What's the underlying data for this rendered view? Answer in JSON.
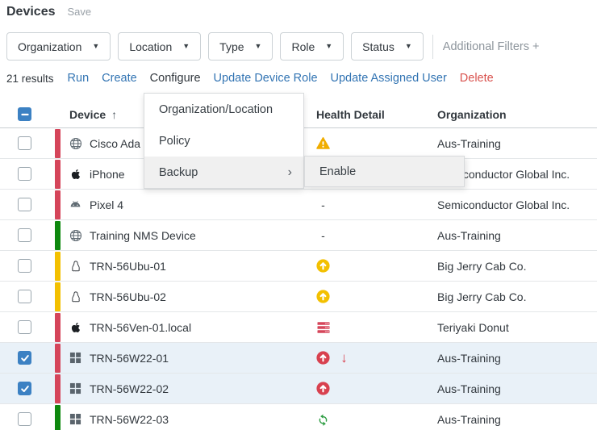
{
  "header": {
    "title": "Devices",
    "save_label": "Save"
  },
  "filters": {
    "dropdowns": [
      "Organization",
      "Location",
      "Type",
      "Role",
      "Status"
    ],
    "additional_label": "Additional Filters +"
  },
  "toolbar": {
    "results_count": "21 results",
    "actions": [
      {
        "label": "Run",
        "style": "link"
      },
      {
        "label": "Create",
        "style": "link"
      },
      {
        "label": "Configure",
        "style": "active"
      },
      {
        "label": "Update Device Role",
        "style": "link"
      },
      {
        "label": "Update Assigned User",
        "style": "link"
      },
      {
        "label": "Delete",
        "style": "danger"
      }
    ]
  },
  "table": {
    "headers": {
      "device": "Device",
      "sort_indicator": "↑",
      "health": "Health Detail",
      "organization": "Organization"
    },
    "select_all_state": "indeterminate",
    "rows": [
      {
        "device": "Cisco Ada",
        "device_icon": "globe",
        "status_color": "red",
        "health": [
          "warning-triangle"
        ],
        "organization": "Aus-Training",
        "selected": false
      },
      {
        "device": "iPhone",
        "device_icon": "apple",
        "status_color": "red",
        "health": [],
        "organization": "Semiconductor Global Inc.",
        "selected": false
      },
      {
        "device": "Pixel 4",
        "device_icon": "android",
        "status_color": "red",
        "health": [
          "dash"
        ],
        "organization": "Semiconductor Global Inc.",
        "selected": false
      },
      {
        "device": "Training NMS Device",
        "device_icon": "globe",
        "status_color": "green",
        "health": [
          "dash"
        ],
        "organization": "Aus-Training",
        "selected": false
      },
      {
        "device": "TRN-56Ubu-01",
        "device_icon": "linux",
        "status_color": "yellow",
        "health": [
          "up-arrow-yellow"
        ],
        "organization": "Big Jerry Cab Co.",
        "selected": false
      },
      {
        "device": "TRN-56Ubu-02",
        "device_icon": "linux",
        "status_color": "yellow",
        "health": [
          "up-arrow-yellow"
        ],
        "organization": "Big Jerry Cab Co.",
        "selected": false
      },
      {
        "device": "TRN-56Ven-01.local",
        "device_icon": "apple",
        "status_color": "red",
        "health": [
          "server-red"
        ],
        "organization": "Teriyaki Donut",
        "selected": false
      },
      {
        "device": "TRN-56W22-01",
        "device_icon": "windows",
        "status_color": "red",
        "health": [
          "up-arrow-red",
          "down-arrow-red"
        ],
        "organization": "Aus-Training",
        "selected": true
      },
      {
        "device": "TRN-56W22-02",
        "device_icon": "windows",
        "status_color": "red",
        "health": [
          "up-arrow-red"
        ],
        "organization": "Aus-Training",
        "selected": true
      },
      {
        "device": "TRN-56W22-03",
        "device_icon": "windows",
        "status_color": "green",
        "health": [
          "sync-green"
        ],
        "organization": "Aus-Training",
        "selected": false
      }
    ]
  },
  "context_menu": {
    "items": [
      {
        "label": "Organization/Location",
        "has_submenu": false,
        "highlighted": false
      },
      {
        "label": "Policy",
        "has_submenu": false,
        "highlighted": false
      },
      {
        "label": "Backup",
        "has_submenu": true,
        "highlighted": true
      }
    ],
    "submenu": {
      "items": [
        {
          "label": "Enable",
          "highlighted": true
        }
      ]
    }
  },
  "colors": {
    "accent_blue": "#3274b3",
    "checkbox_blue": "#3c81c3",
    "selected_row_bg": "#e9f1f8",
    "status_red": "#d5455a",
    "status_green": "#0e880e",
    "status_yellow": "#f3c000",
    "warning_amber": "#f0ad00",
    "health_red": "#d8414f",
    "sync_green": "#2f9e44",
    "danger_red": "#d9534f"
  }
}
